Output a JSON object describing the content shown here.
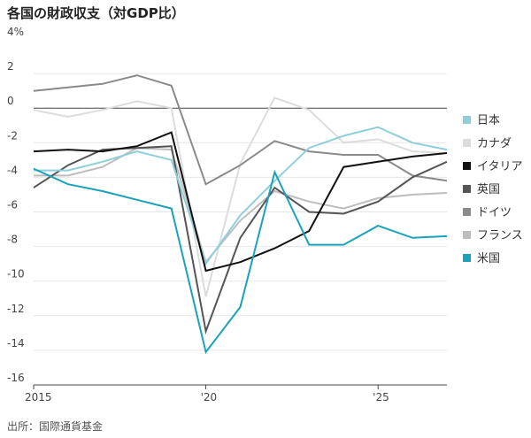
{
  "title": "各国の財政収支（対GDP比）",
  "source": "出所：国際通貨基金",
  "chart_data": {
    "type": "line",
    "title": "各国の財政収支（対GDP比）",
    "xlabel": "",
    "ylabel": "",
    "unit": "%",
    "xlim": [
      2015,
      2027
    ],
    "ylim": [
      -16,
      4
    ],
    "y_ticks": [
      4,
      2,
      0,
      -2,
      -4,
      -6,
      -8,
      -10,
      -12,
      -14,
      -16
    ],
    "y_tick_labels": [
      "4%",
      "2",
      "0",
      "-2",
      "-4",
      "-6",
      "-8",
      "-10",
      "-12",
      "-14",
      "-16"
    ],
    "x_ticks": [
      2015,
      2020,
      2025
    ],
    "x_tick_labels": [
      "2015",
      "'20",
      "'25"
    ],
    "grid": true,
    "legend_position": "right",
    "x": [
      2015,
      2016,
      2017,
      2018,
      2019,
      2020,
      2021,
      2022,
      2023,
      2024,
      2025,
      2026,
      2027
    ],
    "series": [
      {
        "name": "日本",
        "color": "#8ecfd9",
        "values": [
          -3.6,
          -3.6,
          -3.1,
          -2.5,
          -3.0,
          -9.0,
          -6.2,
          -4.2,
          -2.3,
          -1.6,
          -1.1,
          -2.0,
          -2.4
        ]
      },
      {
        "name": "カナダ",
        "color": "#dcdcdc",
        "values": [
          -0.1,
          -0.5,
          -0.1,
          0.4,
          0.0,
          -10.9,
          -3.2,
          0.6,
          -0.1,
          -2.0,
          -1.8,
          -2.5,
          -2.6
        ]
      },
      {
        "name": "イタリア",
        "color": "#111111",
        "values": [
          -2.5,
          -2.4,
          -2.5,
          -2.2,
          -1.4,
          -9.4,
          -8.9,
          -8.1,
          -7.1,
          -3.4,
          -3.1,
          -2.8,
          -2.6
        ]
      },
      {
        "name": "英国",
        "color": "#555555",
        "values": [
          -4.6,
          -3.3,
          -2.4,
          -2.3,
          -2.2,
          -12.9,
          -7.5,
          -4.6,
          -6.0,
          -6.1,
          -5.4,
          -4.0,
          -3.1
        ]
      },
      {
        "name": "ドイツ",
        "color": "#8a8a8a",
        "values": [
          1.0,
          1.2,
          1.4,
          1.9,
          1.3,
          -4.4,
          -3.3,
          -1.9,
          -2.5,
          -2.7,
          -2.7,
          -3.9,
          -4.2
        ]
      },
      {
        "name": "フランス",
        "color": "#bdbdbd",
        "values": [
          -3.9,
          -3.9,
          -3.4,
          -2.3,
          -2.4,
          -8.9,
          -6.5,
          -4.8,
          -5.4,
          -5.8,
          -5.2,
          -5.0,
          -4.9
        ]
      },
      {
        "name": "米国",
        "color": "#1aa3b8",
        "values": [
          -3.5,
          -4.4,
          -4.8,
          -5.3,
          -5.8,
          -14.1,
          -11.5,
          -3.7,
          -7.9,
          -7.9,
          -6.8,
          -7.5,
          -7.4
        ]
      }
    ]
  }
}
